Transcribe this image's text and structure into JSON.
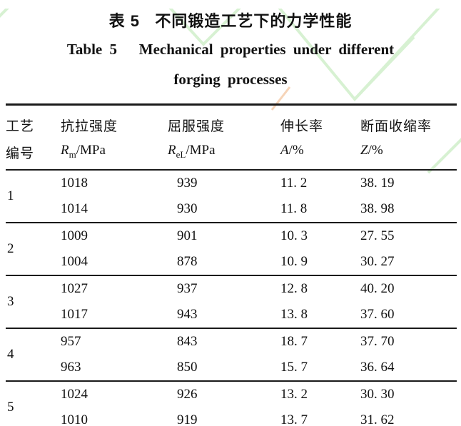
{
  "page": {
    "title_zh": "表 5   不同锻造工艺下的力学性能",
    "title_en_line1": "Table 5   Mechanical properties under different",
    "title_en_line2": "forging processes"
  },
  "colors": {
    "text": "#111111",
    "rule": "#1a1a1a",
    "watermark_green": "#d7f1d2",
    "watermark_orange": "#f3c5a0"
  },
  "table": {
    "columns": [
      {
        "line1": "工艺",
        "line2_plain": "编号"
      },
      {
        "line1": "抗拉强度",
        "line2_symbol": "R",
        "line2_sub": "m",
        "line2_unit": "/MPa"
      },
      {
        "line1": "屈服强度",
        "line2_symbol": "R",
        "line2_sub": "eL",
        "line2_unit": "/MPa"
      },
      {
        "line1": "伸长率",
        "line2_symbol": "A",
        "line2_sub": "",
        "line2_unit": "/%"
      },
      {
        "line1": "断面收缩率",
        "line2_symbol": "Z",
        "line2_sub": "",
        "line2_unit": "/%"
      }
    ],
    "groups": [
      {
        "process": "1",
        "rows": [
          [
            "1018",
            "939",
            "11. 2",
            "38. 19"
          ],
          [
            "1014",
            "930",
            "11. 8",
            "38. 98"
          ]
        ]
      },
      {
        "process": "2",
        "rows": [
          [
            "1009",
            "901",
            "10. 3",
            "27. 55"
          ],
          [
            "1004",
            "878",
            "10. 9",
            "30. 27"
          ]
        ]
      },
      {
        "process": "3",
        "rows": [
          [
            "1027",
            "937",
            "12. 8",
            "40. 20"
          ],
          [
            "1017",
            "943",
            "13. 8",
            "37. 60"
          ]
        ]
      },
      {
        "process": "4",
        "rows": [
          [
            "957",
            "843",
            "18. 7",
            "37. 70"
          ],
          [
            "963",
            "850",
            "15. 7",
            "36. 64"
          ]
        ]
      },
      {
        "process": "5",
        "rows": [
          [
            "1024",
            "926",
            "13. 2",
            "30. 30"
          ],
          [
            "1010",
            "919",
            "13. 7",
            "31. 62"
          ]
        ]
      }
    ]
  }
}
